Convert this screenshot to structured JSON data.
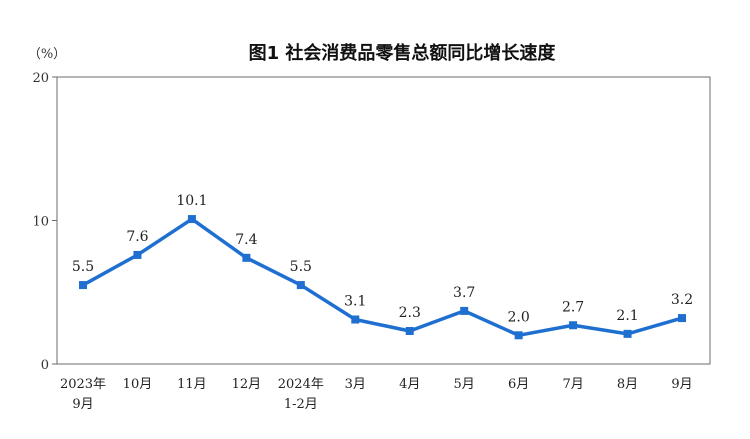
{
  "chart_data": {
    "type": "line",
    "title": "图1 社会消费品零售总额同比增长速度",
    "unit_label": "（%）",
    "ylim": [
      0,
      20
    ],
    "yticks": [
      "0",
      "10",
      "20"
    ],
    "categories": [
      [
        "2023年",
        "9月"
      ],
      [
        "10月"
      ],
      [
        "11月"
      ],
      [
        "12月"
      ],
      [
        "2024年",
        "1-2月"
      ],
      [
        "3月"
      ],
      [
        "4月"
      ],
      [
        "5月"
      ],
      [
        "6月"
      ],
      [
        "7月"
      ],
      [
        "8月"
      ],
      [
        "9月"
      ]
    ],
    "series": [
      {
        "values": [
          5.5,
          7.6,
          10.1,
          7.4,
          5.5,
          3.1,
          2.3,
          3.7,
          2.0,
          2.7,
          2.1,
          3.2
        ]
      }
    ],
    "data_labels": [
      "5.5",
      "7.6",
      "10.1",
      "7.4",
      "5.5",
      "3.1",
      "2.3",
      "3.7",
      "2.0",
      "2.7",
      "2.1",
      "3.2"
    ],
    "line_color": "#1f6fd1",
    "grid": false
  }
}
